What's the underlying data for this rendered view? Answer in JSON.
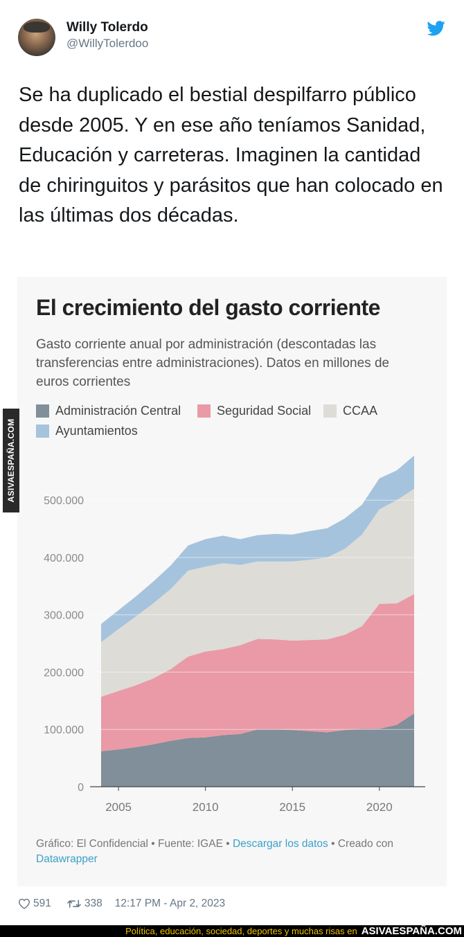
{
  "tweet": {
    "author_name": "Willy Tolerdo",
    "author_handle": "@WillyTolerdoo",
    "text": "Se ha duplicado el bestial despilfarro público desde 2005. Y en ese año teníamos Sanidad, Educación y carreteras. Imaginen la cantidad de chiringuitos y parásitos que han colocado en las últimas dos décadas.",
    "likes": "591",
    "retweets": "338",
    "timestamp": "12:17 PM - Apr 2, 2023",
    "icons": [
      "avatar",
      "twitter-bird-icon",
      "heart-icon",
      "retweet-icon"
    ]
  },
  "chart_card": {
    "title": "El crecimiento del gasto corriente",
    "subtitle": "Gasto corriente anual por administración (descontadas las transferencias entre administraciones). Datos en millones de euros corrientes",
    "legend": [
      {
        "label": "Administración Central",
        "color": "#808f99"
      },
      {
        "label": "Seguridad Social",
        "color": "#e99aa6"
      },
      {
        "label": "CCAA",
        "color": "#dddcd6"
      },
      {
        "label": "Ayuntamientos",
        "color": "#a6c3dd"
      }
    ],
    "footer_prefix": "Gráfico: El Confidencial • Fuente: IGAE • ",
    "footer_link1": "Descargar los datos",
    "footer_mid": " • Creado con ",
    "footer_link2": "Datawrapper"
  },
  "chart_data": {
    "type": "area",
    "stacked": true,
    "x": [
      2004,
      2005,
      2006,
      2007,
      2008,
      2009,
      2010,
      2011,
      2012,
      2013,
      2014,
      2015,
      2016,
      2017,
      2018,
      2019,
      2020,
      2021,
      2022
    ],
    "series": [
      {
        "name": "Administración Central",
        "color": "#808f99",
        "values": [
          62000,
          65000,
          69000,
          74000,
          80000,
          85000,
          86000,
          90000,
          92000,
          100000,
          100000,
          99000,
          97000,
          95000,
          99000,
          101000,
          101000,
          108000,
          128000
        ]
      },
      {
        "name": "Seguridad Social",
        "color": "#e99aa6",
        "values": [
          95000,
          102000,
          108000,
          115000,
          125000,
          142000,
          150000,
          150000,
          155000,
          158000,
          157000,
          156000,
          159000,
          162000,
          166000,
          179000,
          218000,
          212000,
          208000
        ]
      },
      {
        "name": "CCAA",
        "color": "#dddcd6",
        "values": [
          95000,
          108000,
          120000,
          131000,
          140000,
          150000,
          148000,
          150000,
          140000,
          135000,
          136000,
          138000,
          140000,
          143000,
          150000,
          160000,
          165000,
          180000,
          184000
        ]
      },
      {
        "name": "Ayuntamientos",
        "color": "#a6c3dd",
        "values": [
          32000,
          33000,
          35000,
          38000,
          41000,
          44000,
          48000,
          48000,
          45000,
          46000,
          48000,
          47000,
          50000,
          51000,
          53000,
          52000,
          54000,
          52000,
          58000
        ]
      }
    ],
    "y_ticks": [
      "0",
      "100.000",
      "200.000",
      "300.000",
      "400.000",
      "500.000"
    ],
    "y_tick_values": [
      0,
      100000,
      200000,
      300000,
      400000,
      500000
    ],
    "x_ticks": [
      "2005",
      "2010",
      "2015",
      "2020"
    ],
    "x_tick_values": [
      2005,
      2010,
      2015,
      2020
    ],
    "ylim": [
      0,
      580000
    ],
    "grid": true
  },
  "watermark": "ASIVAESPAÑA.COM",
  "bottom_bar": {
    "slogan": "Política, educación, sociedad, deportes y muchas risas en",
    "brand": "ASIVAESPAÑA.COM"
  }
}
